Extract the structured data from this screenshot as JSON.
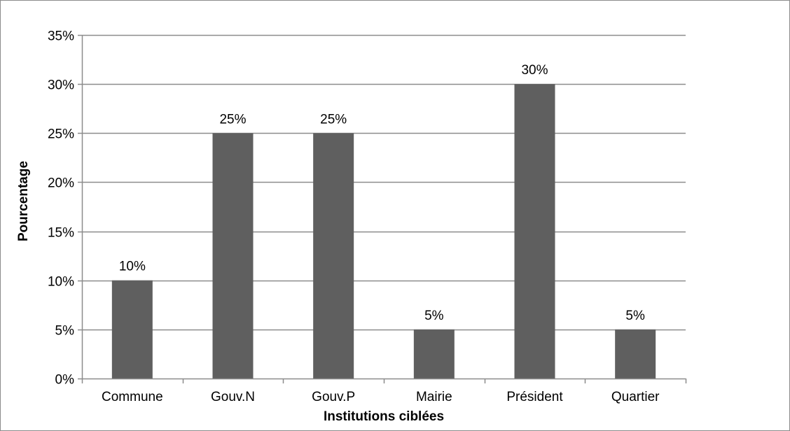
{
  "chart_data": {
    "type": "bar",
    "categories": [
      "Commune",
      "Gouv.N",
      "Gouv.P",
      "Mairie",
      "Président",
      "Quartier"
    ],
    "values": [
      10,
      25,
      25,
      5,
      30,
      5
    ],
    "data_labels": [
      "10%",
      "25%",
      "25%",
      "5%",
      "30%",
      "5%"
    ],
    "title": "",
    "xlabel": "Institutions ciblées",
    "ylabel": "Pourcentage",
    "ylim": [
      0,
      35
    ],
    "yticks": [
      0,
      5,
      10,
      15,
      20,
      25,
      30,
      35
    ],
    "ytick_labels": [
      "0%",
      "5%",
      "10%",
      "15%",
      "20%",
      "25%",
      "30%",
      "35%"
    ],
    "grid": true,
    "legend": "none",
    "colors": {
      "bar": "#5f5f5f",
      "grid": "#8c8c8c",
      "axis": "#8c8c8c",
      "text": "#000000"
    }
  }
}
